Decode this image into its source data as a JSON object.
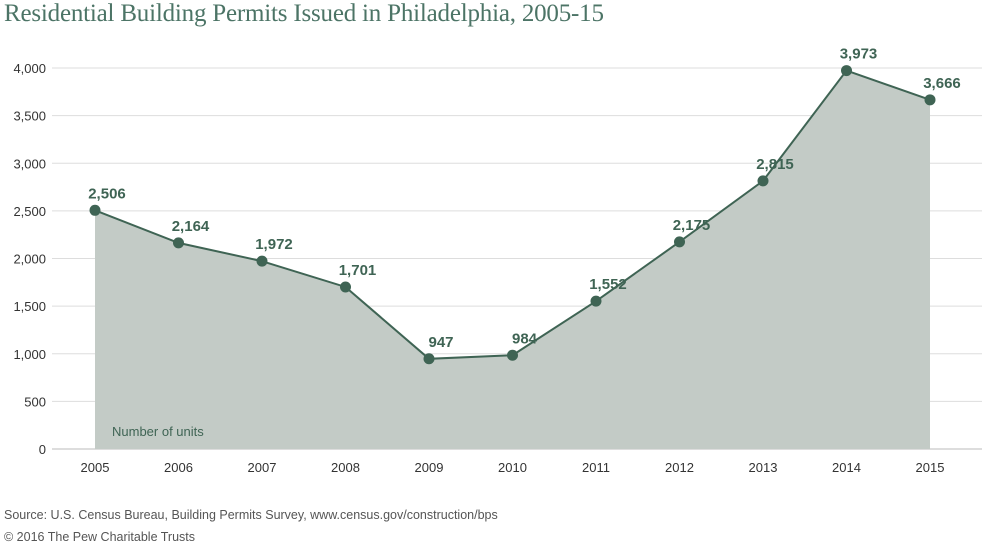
{
  "chart_data": {
    "type": "area",
    "title": "Residential Building Permits Issued in Philadelphia, 2005-15",
    "series": [
      {
        "name": "Number of units",
        "x": [
          "2005",
          "2006",
          "2007",
          "2008",
          "2009",
          "2010",
          "2011",
          "2012",
          "2013",
          "2014",
          "2015"
        ],
        "values": [
          2506,
          2164,
          1972,
          1701,
          947,
          984,
          1552,
          2175,
          2815,
          3973,
          3666
        ],
        "labels": [
          "2,506",
          "2,164",
          "1,972",
          "1,701",
          "947",
          "984",
          "1,552",
          "2,175",
          "2,815",
          "3,973",
          "3,666"
        ]
      }
    ],
    "ylim": [
      0,
      4000
    ],
    "yticks": [
      0,
      500,
      1000,
      1500,
      2000,
      2500,
      3000,
      3500,
      4000
    ],
    "ytick_labels": [
      "0",
      "500",
      "1,000",
      "1,500",
      "2,000",
      "2,500",
      "3,000",
      "3,500",
      "4,000"
    ],
    "grid": true,
    "colors": {
      "line": "#3f6454",
      "fill": "#c3cbc6",
      "marker": "#3f6454",
      "title": "#4c7466",
      "grid": "#dddddd"
    }
  },
  "footer": {
    "source": "Source: U.S. Census Bureau, Building Permits Survey, www.census.gov/construction/bps",
    "copyright": "© 2016 The Pew Charitable Trusts"
  }
}
